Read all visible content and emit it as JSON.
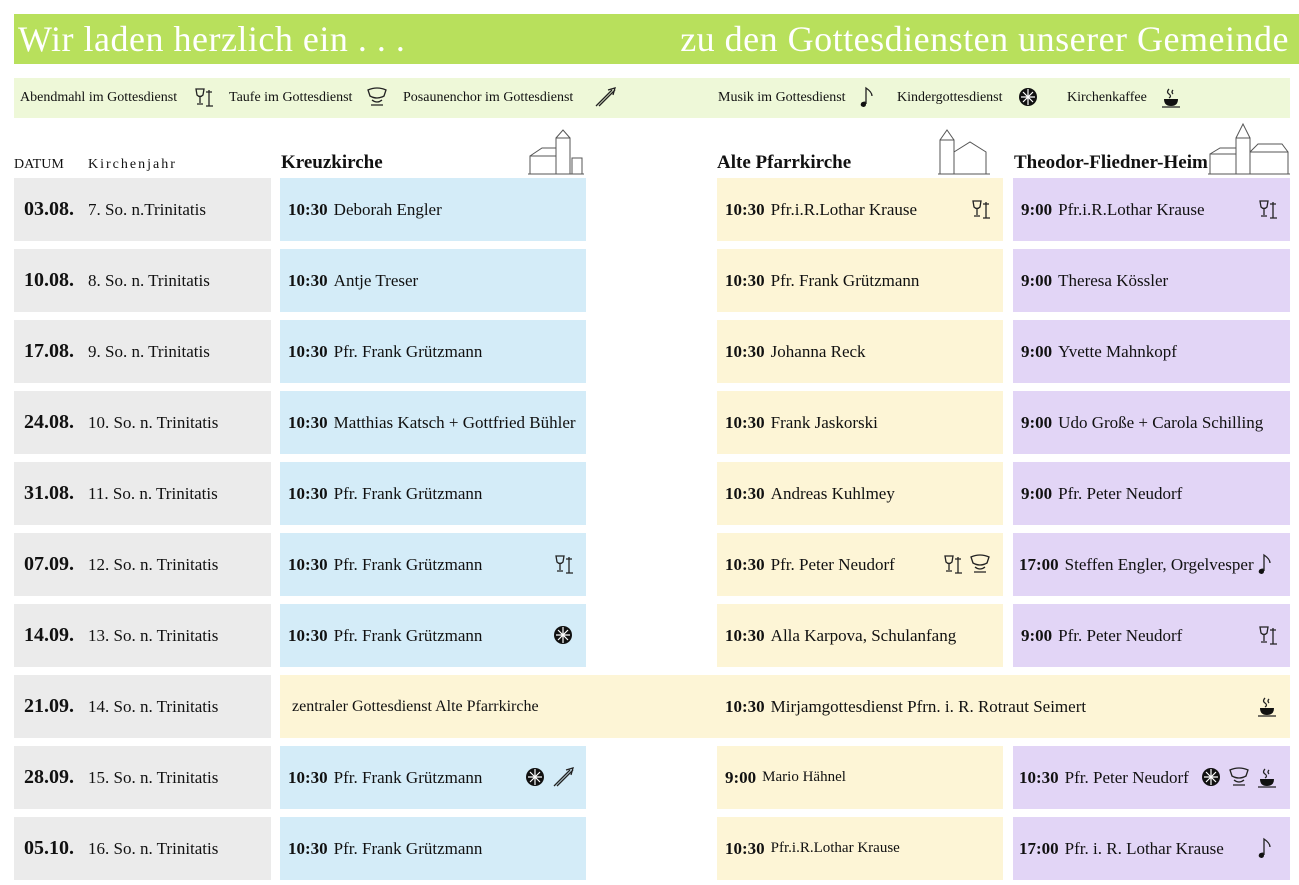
{
  "header": {
    "left": "Wir laden herzlich ein . . .",
    "right": "zu den Gottesdiensten unserer Gemeinde"
  },
  "legend": [
    "Abendmahl im Gottesdienst",
    "Taufe im Gottesdienst",
    "Posaunenchor im Gottesdienst",
    "Musik im Gottesdienst",
    "Kindergottesdienst",
    "Kirchenkaffee"
  ],
  "columns": {
    "date": "DATUM",
    "church_year": "Kirchenjahr",
    "kreuzkirche": "Kreuzkirche",
    "alte_pfarrkirche": "Alte Pfarrkirche",
    "theodor": "Theodor-Fliedner-Heim"
  },
  "rows": [
    {
      "date": "03.08.",
      "sunday": "7. So. n.Trinitatis",
      "kreuzkirche": {
        "time": "10:30",
        "name": "Deborah Engler"
      },
      "alte_pfarrkirche": {
        "time": "10:30",
        "name": "Pfr.i.R.Lothar Krause"
      },
      "theodor": {
        "time": "9:00",
        "name": "Pfr.i.R.Lothar Krause"
      }
    },
    {
      "date": "10.08.",
      "sunday": "8. So. n. Trinitatis",
      "kreuzkirche": {
        "time": "10:30",
        "name": "Antje Treser"
      },
      "alte_pfarrkirche": {
        "time": "10:30",
        "name": "Pfr. Frank Grützmann"
      },
      "theodor": {
        "time": "9:00",
        "name": "Theresa Kössler"
      }
    },
    {
      "date": "17.08.",
      "sunday": "9. So. n. Trinitatis",
      "kreuzkirche": {
        "time": "10:30",
        "name": "Pfr. Frank Grützmann"
      },
      "alte_pfarrkirche": {
        "time": "10:30",
        "name": "Johanna Reck"
      },
      "theodor": {
        "time": "9:00",
        "name": "Yvette Mahnkopf"
      }
    },
    {
      "date": "24.08.",
      "sunday": "10. So. n. Trinitatis",
      "kreuzkirche": {
        "time": "10:30",
        "name": "Matthias Katsch + Gottfried Bühler"
      },
      "alte_pfarrkirche": {
        "time": "10:30",
        "name": "Frank Jaskorski"
      },
      "theodor": {
        "time": "9:00",
        "name": "Udo  Große + Carola Schilling"
      }
    },
    {
      "date": "31.08.",
      "sunday": "11. So. n. Trinitatis",
      "kreuzkirche": {
        "time": "10:30",
        "name": "Pfr. Frank Grützmann"
      },
      "alte_pfarrkirche": {
        "time": "10:30",
        "name": "Andreas Kuhlmey"
      },
      "theodor": {
        "time": "9:00",
        "name": "Pfr. Peter Neudorf"
      }
    },
    {
      "date": "07.09.",
      "sunday": "12. So. n. Trinitatis",
      "kreuzkirche": {
        "time": "10:30",
        "name": "Pfr. Frank Grützmann"
      },
      "alte_pfarrkirche": {
        "time": "10:30",
        "name": "Pfr. Peter Neudorf"
      },
      "theodor": {
        "time": "17:00",
        "name": "Steffen Engler, Orgelvesper"
      }
    },
    {
      "date": "14.09.",
      "sunday": "13. So. n. Trinitatis",
      "kreuzkirche": {
        "time": "10:30",
        "name": "Pfr. Frank Grützmann"
      },
      "alte_pfarrkirche": {
        "time": "10:30",
        "name": "Alla Karpova, Schulanfang"
      },
      "theodor": {
        "time": "9:00",
        "name": "Pfr. Peter Neudorf"
      }
    },
    {
      "date": "21.09.",
      "sunday": "14. So. n. Trinitatis",
      "kreuzkirche": {
        "name": "zentraler Gottesdienst Alte Pfarrkirche"
      },
      "alte_pfarrkirche": {
        "time": "10:30",
        "name": "Mirjamgottesdienst Pfrn. i. R. Rotraut Seimert"
      }
    },
    {
      "date": "28.09.",
      "sunday": "15. So. n. Trinitatis",
      "kreuzkirche": {
        "time": "10:30",
        "name": "Pfr. Frank Grützmann"
      },
      "alte_pfarrkirche": {
        "time": "9:00",
        "name": "Mario Hähnel"
      },
      "theodor": {
        "time": "10:30",
        "name": "Pfr. Peter Neudorf"
      }
    },
    {
      "date": "05.10.",
      "sunday": "16. So. n. Trinitatis",
      "kreuzkirche": {
        "time": "10:30",
        "name": "Pfr. Frank Grützmann"
      },
      "alte_pfarrkirche": {
        "time": "10:30",
        "name": "Pfr.i.R.Lothar Krause"
      },
      "theodor": {
        "time": "17:00",
        "name": "Pfr. i. R. Lothar Krause"
      }
    }
  ]
}
